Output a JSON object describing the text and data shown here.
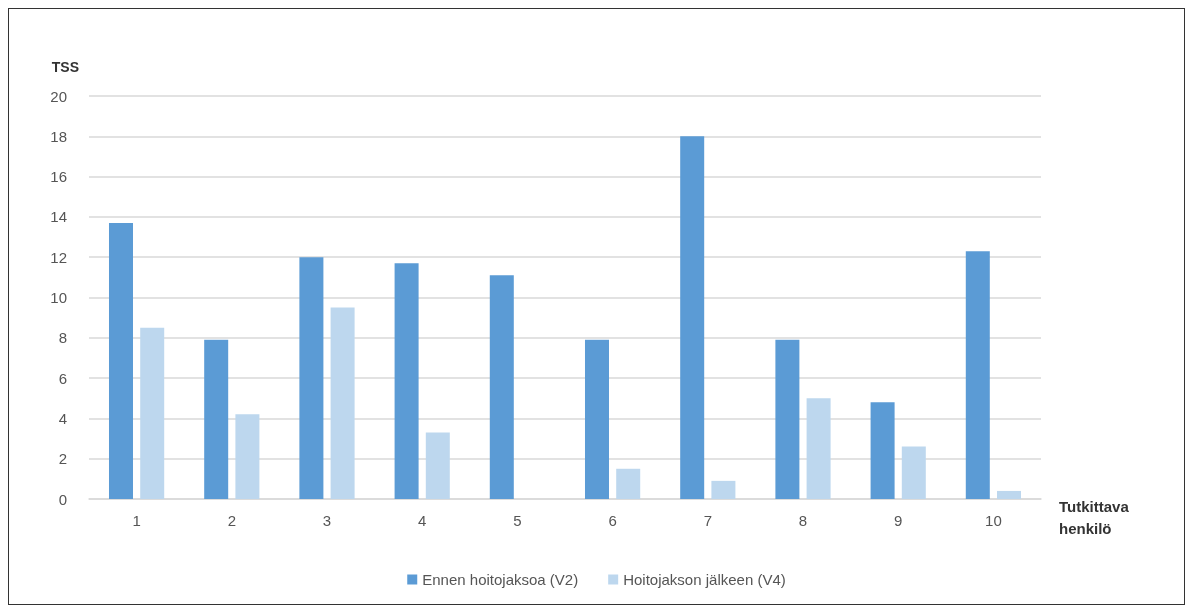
{
  "chart_data": {
    "type": "bar",
    "ylabel": "TSS",
    "xlabel": "Tutkittava\nhenkilö",
    "categories": [
      "1",
      "2",
      "3",
      "4",
      "5",
      "6",
      "7",
      "8",
      "9",
      "10"
    ],
    "series": [
      {
        "name": "Ennen hoitojaksoa (V2)",
        "color": "#5b9bd5",
        "values": [
          13.7,
          7.9,
          12.0,
          11.7,
          11.1,
          7.9,
          18.0,
          7.9,
          4.8,
          12.3
        ]
      },
      {
        "name": "Hoitojakson jälkeen (V4)",
        "color": "#bdd7ee",
        "values": [
          8.5,
          4.2,
          9.5,
          3.3,
          0,
          1.5,
          0.9,
          5.0,
          2.6,
          0.4
        ]
      }
    ],
    "ylim": [
      0,
      20
    ],
    "yticks": [
      0,
      2,
      4,
      6,
      8,
      10,
      12,
      14,
      16,
      18,
      20
    ],
    "grid": "y",
    "legend": "bottom"
  }
}
